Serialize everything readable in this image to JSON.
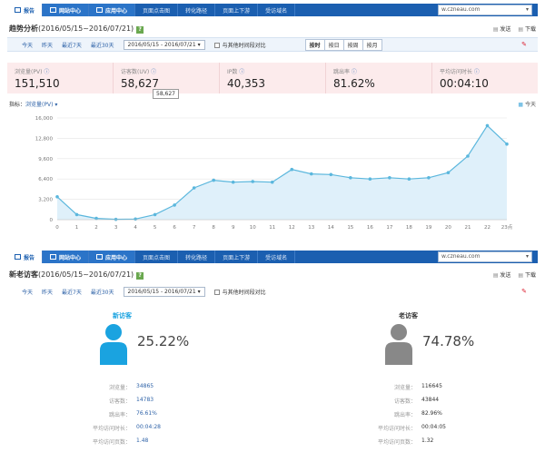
{
  "tabs": [
    {
      "label": "报告"
    },
    {
      "label": "网站中心"
    },
    {
      "label": "应用中心"
    },
    {
      "label": "页面点击图"
    },
    {
      "label": "转化路径"
    },
    {
      "label": "页面上下游"
    },
    {
      "label": "受访域名"
    }
  ],
  "domain": "w.czneau.com",
  "trend": {
    "title": "趋势分析",
    "date": "(2016/05/15~2016/07/21)",
    "help": "?",
    "actions": [
      "发送",
      "下载"
    ],
    "quick_ranges": [
      "今天",
      "昨天",
      "最近7天",
      "最近30天"
    ],
    "date_range": "2016/05/15 - 2016/07/21",
    "compare_label": "与其他时间段对比",
    "granularity": [
      "按时",
      "按日",
      "按周",
      "按月"
    ],
    "granularity_selected": "按时",
    "metrics": [
      {
        "label": "浏览量(PV)",
        "value": "151,510"
      },
      {
        "label": "访客数(UV)",
        "value": "58,627"
      },
      {
        "label": "IP数",
        "value": "40,353"
      },
      {
        "label": "跳出率",
        "value": "81.62%"
      },
      {
        "label": "平均访问时长",
        "value": "00:04:10"
      }
    ],
    "tooltip": "58,627",
    "indicator_label": "指标：",
    "indicator_value": "浏览量(PV) ▾",
    "legend": "今天"
  },
  "chart_data": {
    "type": "area",
    "x": [
      "0",
      "1",
      "2",
      "3",
      "4",
      "5",
      "6",
      "7",
      "8",
      "9",
      "10",
      "11",
      "12",
      "13",
      "14",
      "15",
      "16",
      "17",
      "18",
      "19",
      "20",
      "21",
      "22",
      "23点"
    ],
    "series": [
      {
        "values": [
          3600,
          800,
          200,
          50,
          100,
          800,
          2300,
          5000,
          6200,
          5900,
          6000,
          5900,
          7900,
          7200,
          7100,
          6600,
          6400,
          6600,
          6400,
          6600,
          7400,
          10000,
          14800,
          11900
        ]
      }
    ],
    "ylim": [
      0,
      16000
    ],
    "yticks": [
      "0",
      "3,200",
      "6,400",
      "9,600",
      "12,800",
      "16,000"
    ],
    "color": "#5bb7dd",
    "grid": true
  },
  "visitors": {
    "title": "新老访客",
    "date": "(2016/05/15~2016/07/21)",
    "help": "?",
    "actions": [
      "发送",
      "下载"
    ],
    "quick_ranges": [
      "今天",
      "昨天",
      "最近7天",
      "最近30天"
    ],
    "date_range": "2016/05/15 - 2016/07/21",
    "compare_label": "与其他时间段对比",
    "new": {
      "title": "新访客",
      "pct": "25.22%",
      "color": "#1aa3e0",
      "stats": [
        {
          "k": "浏览量：",
          "v": "34865"
        },
        {
          "k": "访客数：",
          "v": "14783"
        },
        {
          "k": "跳出率：",
          "v": "76.61%"
        },
        {
          "k": "平均访问时长：",
          "v": "00:04:28"
        },
        {
          "k": "平均访问页数：",
          "v": "1.48"
        }
      ]
    },
    "old": {
      "title": "老访客",
      "pct": "74.78%",
      "color": "#888888",
      "stats": [
        {
          "k": "浏览量：",
          "v": "116645"
        },
        {
          "k": "访客数：",
          "v": "43844"
        },
        {
          "k": "跳出率：",
          "v": "82.96%"
        },
        {
          "k": "平均访问时长：",
          "v": "00:04:05"
        },
        {
          "k": "平均访问页数：",
          "v": "1.32"
        }
      ]
    }
  }
}
